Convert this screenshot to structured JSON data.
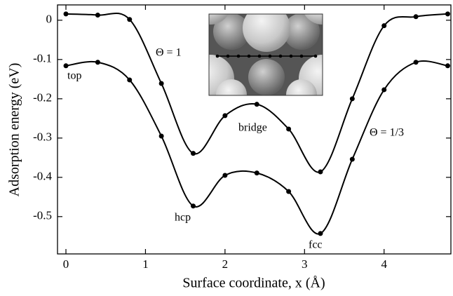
{
  "chart_data": {
    "type": "line",
    "xlabel": "Surface coordinate, x (Å)",
    "ylabel": "Adsorption energy (eV)",
    "xlim": [
      -0.106,
      4.84
    ],
    "ylim": [
      -0.595,
      0.039
    ],
    "xticks": [
      0,
      1,
      2,
      3,
      4
    ],
    "yticks": [
      0,
      -0.1,
      -0.2,
      -0.3,
      -0.4,
      -0.5
    ],
    "x": [
      0,
      0.4,
      0.8,
      1.2,
      1.6,
      2.0,
      2.4,
      2.8,
      3.2,
      3.6,
      4.0,
      4.4,
      4.8
    ],
    "series": [
      {
        "name": "Θ = 1",
        "color": "#000000",
        "values": [
          0.016,
          0.013,
          0.002,
          -0.161,
          -0.339,
          -0.243,
          -0.214,
          -0.277,
          -0.386,
          -0.2,
          -0.014,
          0.009,
          0.016
        ]
      },
      {
        "name": "Θ = 1/3",
        "color": "#000000",
        "values": [
          -0.116,
          -0.107,
          -0.152,
          -0.295,
          -0.473,
          -0.395,
          -0.389,
          -0.436,
          -0.543,
          -0.354,
          -0.177,
          -0.107,
          -0.116
        ]
      }
    ],
    "annotations": [
      "top",
      "hcp",
      "bridge",
      "fcc"
    ]
  }
}
